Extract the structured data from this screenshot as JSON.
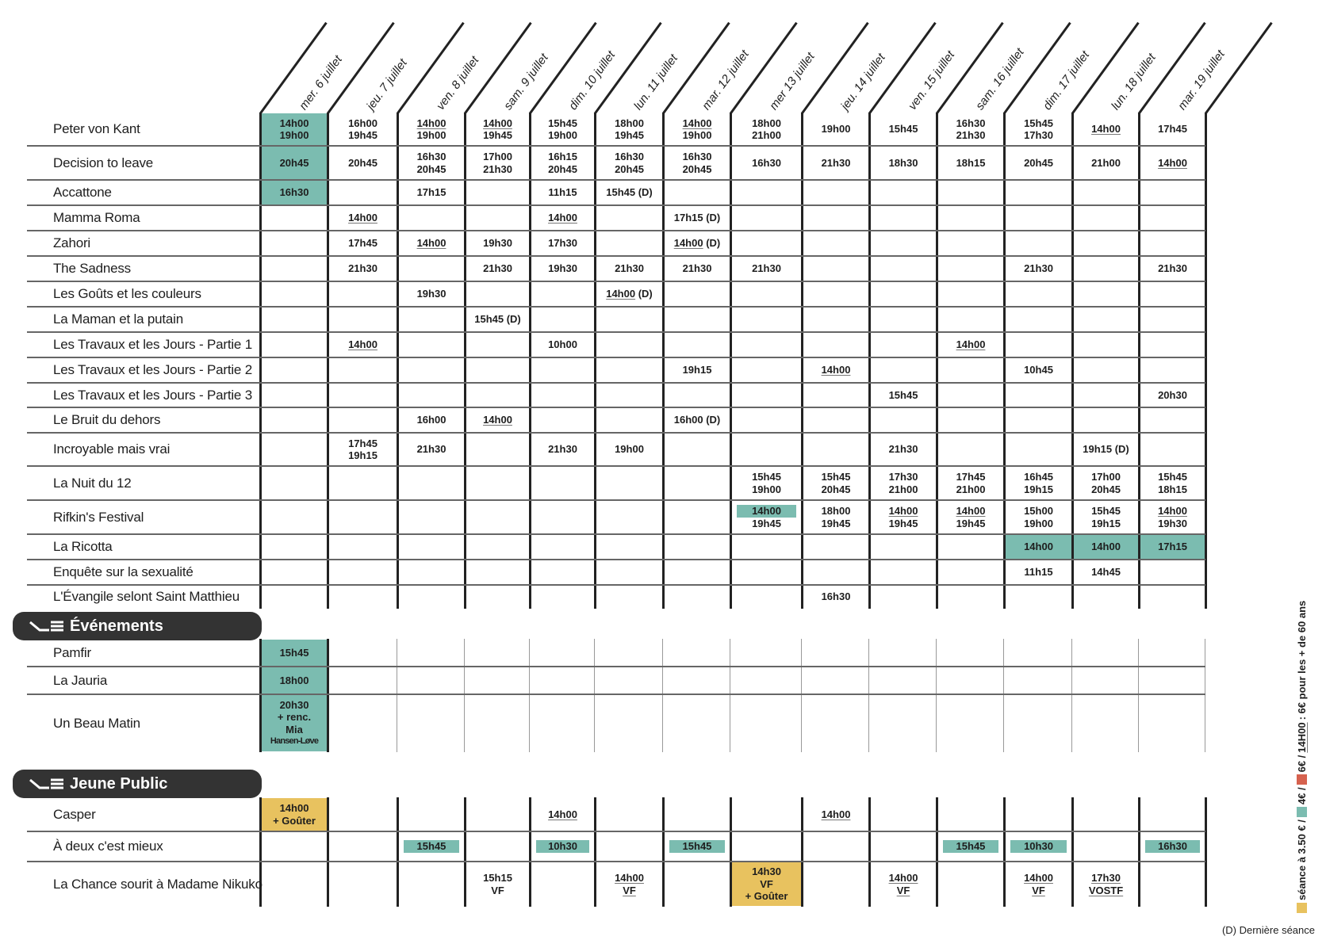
{
  "colors": {
    "teal": "#7bbcb0",
    "gold": "#e8c25f",
    "red": "#d6624f",
    "dark": "#333333"
  },
  "days": [
    "mer. 6 juillet",
    "jeu. 7 juillet",
    "ven. 8 juillet",
    "sam. 9 juillet",
    "dim. 10 juillet",
    "lun. 11 juillet",
    "mar. 12 juillet",
    "mer 13 juillet",
    "jeu. 14 juillet",
    "ven. 15 juillet",
    "sam. 16 juillet",
    "dim. 17 juillet",
    "lun. 18 juillet",
    "mar. 19 juillet"
  ],
  "films": [
    {
      "title": "Peter von Kant",
      "cells": {
        "0": {
          "l": [
            "14h00",
            "19h00"
          ],
          "hl": "fill"
        },
        "1": {
          "l": [
            "16h00",
            "19h45"
          ]
        },
        "2": {
          "l": [
            "14h00",
            "19h00"
          ],
          "u": [
            1,
            0
          ]
        },
        "3": {
          "l": [
            "14h00",
            "19h45"
          ],
          "u": [
            1,
            0
          ]
        },
        "4": {
          "l": [
            "15h45",
            "19h00"
          ]
        },
        "5": {
          "l": [
            "18h00",
            "19h45"
          ]
        },
        "6": {
          "l": [
            "14h00",
            "19h00"
          ],
          "u": [
            1,
            0
          ]
        },
        "7": {
          "l": [
            "18h00",
            "21h00"
          ]
        },
        "8": {
          "l": [
            "19h00"
          ]
        },
        "9": {
          "l": [
            "15h45"
          ]
        },
        "10": {
          "l": [
            "16h30",
            "21h30"
          ]
        },
        "11": {
          "l": [
            "15h45",
            "17h30"
          ]
        },
        "12": {
          "l": [
            "14h00"
          ],
          "u": [
            1
          ]
        },
        "13": {
          "l": [
            "17h45"
          ]
        }
      }
    },
    {
      "title": "Decision to leave",
      "cells": {
        "0": {
          "l": [
            "20h45"
          ],
          "hl": "fill"
        },
        "1": {
          "l": [
            "20h45"
          ]
        },
        "2": {
          "l": [
            "16h30",
            "20h45"
          ]
        },
        "3": {
          "l": [
            "17h00",
            "21h30"
          ]
        },
        "4": {
          "l": [
            "16h15",
            "20h45"
          ]
        },
        "5": {
          "l": [
            "16h30",
            "20h45"
          ]
        },
        "6": {
          "l": [
            "16h30",
            "20h45"
          ]
        },
        "7": {
          "l": [
            "16h30"
          ]
        },
        "8": {
          "l": [
            "21h30"
          ]
        },
        "9": {
          "l": [
            "18h30"
          ]
        },
        "10": {
          "l": [
            "18h15"
          ]
        },
        "11": {
          "l": [
            "20h45"
          ]
        },
        "12": {
          "l": [
            "21h00"
          ]
        },
        "13": {
          "l": [
            "14h00"
          ],
          "u": [
            1
          ]
        }
      }
    },
    {
      "title": "Accattone",
      "cells": {
        "0": {
          "l": [
            "16h30"
          ],
          "hl": "fill"
        },
        "2": {
          "l": [
            "17h15"
          ]
        },
        "4": {
          "l": [
            "11h15"
          ]
        },
        "5": {
          "l": [
            "15h45 (D)"
          ]
        }
      }
    },
    {
      "title": "Mamma Roma",
      "cells": {
        "1": {
          "l": [
            "14h00"
          ],
          "u": [
            1
          ]
        },
        "4": {
          "l": [
            "14h00"
          ],
          "u": [
            1
          ]
        },
        "6": {
          "l": [
            "17h15 (D)"
          ]
        }
      }
    },
    {
      "title": "Zahori",
      "cells": {
        "1": {
          "l": [
            "17h45"
          ]
        },
        "2": {
          "l": [
            "14h00"
          ],
          "u": [
            1
          ]
        },
        "3": {
          "l": [
            "19h30"
          ]
        },
        "4": {
          "l": [
            "17h30"
          ]
        },
        "6": {
          "l": [
            "14h00 (D)"
          ],
          "u": [
            1
          ]
        }
      }
    },
    {
      "title": "The Sadness",
      "cells": {
        "1": {
          "l": [
            "21h30"
          ]
        },
        "3": {
          "l": [
            "21h30"
          ]
        },
        "4": {
          "l": [
            "19h30"
          ]
        },
        "5": {
          "l": [
            "21h30"
          ]
        },
        "6": {
          "l": [
            "21h30"
          ]
        },
        "7": {
          "l": [
            "21h30"
          ]
        },
        "11": {
          "l": [
            "21h30"
          ]
        },
        "13": {
          "l": [
            "21h30"
          ]
        }
      }
    },
    {
      "title": "Les Goûts et les couleurs",
      "cells": {
        "2": {
          "l": [
            "19h30"
          ]
        },
        "5": {
          "l": [
            "14h00 (D)"
          ],
          "u": [
            1
          ]
        }
      }
    },
    {
      "title": "La Maman et la putain",
      "cells": {
        "3": {
          "l": [
            "15h45 (D)"
          ]
        }
      }
    },
    {
      "title": "Les Travaux et les Jours - Partie 1",
      "cells": {
        "1": {
          "l": [
            "14h00"
          ],
          "u": [
            1
          ]
        },
        "4": {
          "l": [
            "10h00"
          ]
        },
        "10": {
          "l": [
            "14h00"
          ],
          "u": [
            1
          ]
        }
      }
    },
    {
      "title": "Les Travaux et les Jours - Partie 2",
      "cells": {
        "6": {
          "l": [
            "19h15"
          ]
        },
        "8": {
          "l": [
            "14h00"
          ],
          "u": [
            1
          ]
        },
        "11": {
          "l": [
            "10h45"
          ]
        }
      }
    },
    {
      "title": "Les Travaux et les Jours - Partie 3",
      "cells": {
        "9": {
          "l": [
            "15h45"
          ]
        },
        "13": {
          "l": [
            "20h30"
          ]
        }
      }
    },
    {
      "title": "Le Bruit du dehors",
      "cells": {
        "2": {
          "l": [
            "16h00"
          ]
        },
        "3": {
          "l": [
            "14h00"
          ],
          "u": [
            1
          ]
        },
        "6": {
          "l": [
            "16h00 (D)"
          ]
        }
      }
    },
    {
      "title": "Incroyable mais vrai",
      "cells": {
        "1": {
          "l": [
            "17h45",
            "19h15"
          ]
        },
        "2": {
          "l": [
            "21h30"
          ]
        },
        "4": {
          "l": [
            "21h30"
          ]
        },
        "5": {
          "l": [
            "19h00"
          ]
        },
        "9": {
          "l": [
            "21h30"
          ]
        },
        "12": {
          "l": [
            "19h15 (D)"
          ]
        }
      }
    },
    {
      "title": "La Nuit du 12",
      "cells": {
        "7": {
          "l": [
            "15h45",
            "19h00"
          ]
        },
        "8": {
          "l": [
            "15h45",
            "20h45"
          ]
        },
        "9": {
          "l": [
            "17h30",
            "21h00"
          ]
        },
        "10": {
          "l": [
            "17h45",
            "21h00"
          ]
        },
        "11": {
          "l": [
            "16h45",
            "19h15"
          ]
        },
        "12": {
          "l": [
            "17h00",
            "20h45"
          ]
        },
        "13": {
          "l": [
            "15h45",
            "18h15"
          ]
        }
      }
    },
    {
      "title": "Rifkin's Festival",
      "cells": {
        "7": {
          "l": [
            "14h00",
            "19h45"
          ],
          "bar": [
            1,
            0
          ]
        },
        "8": {
          "l": [
            "18h00",
            "19h45"
          ]
        },
        "9": {
          "l": [
            "14h00",
            "19h45"
          ],
          "u": [
            1,
            0
          ]
        },
        "10": {
          "l": [
            "14h00",
            "19h45"
          ],
          "u": [
            1,
            0
          ]
        },
        "11": {
          "l": [
            "15h00",
            "19h00"
          ]
        },
        "12": {
          "l": [
            "15h45",
            "19h15"
          ]
        },
        "13": {
          "l": [
            "14h00",
            "19h30"
          ],
          "u": [
            1,
            0
          ]
        }
      }
    },
    {
      "title": "La Ricotta",
      "cells": {
        "11": {
          "l": [
            "14h00"
          ],
          "hl": "fill"
        },
        "12": {
          "l": [
            "14h00"
          ],
          "hl": "fill"
        },
        "13": {
          "l": [
            "17h15"
          ],
          "hl": "fill"
        }
      }
    },
    {
      "title": "Enquête sur la sexualité",
      "cells": {
        "11": {
          "l": [
            "11h15"
          ]
        },
        "12": {
          "l": [
            "14h45"
          ]
        }
      }
    },
    {
      "title": "L'Évangile selont Saint Matthieu",
      "cells": {
        "8": {
          "l": [
            "16h30"
          ]
        }
      }
    }
  ],
  "events": {
    "title": "Événements",
    "films": [
      {
        "title": "Pamfir",
        "cells": {
          "0": {
            "l": [
              "15h45"
            ],
            "hl": "fill"
          }
        }
      },
      {
        "title": "La Jauria",
        "cells": {
          "0": {
            "l": [
              "18h00"
            ],
            "hl": "fill"
          }
        }
      },
      {
        "title": "Un Beau Matin",
        "cells": {
          "0": {
            "l": [
              "20h30",
              "+ renc.",
              "Mia",
              "Hansen-Løve"
            ],
            "hl": "fill"
          }
        }
      }
    ]
  },
  "young": {
    "title": "Jeune Public",
    "films": [
      {
        "title": "Casper",
        "cells": {
          "0": {
            "l": [
              "14h00",
              "+ Goûter"
            ],
            "hl": "gold"
          },
          "4": {
            "l": [
              "14h00"
            ],
            "u": [
              1
            ]
          },
          "8": {
            "l": [
              "14h00"
            ],
            "u": [
              1
            ]
          }
        }
      },
      {
        "title": "À deux c'est mieux",
        "cells": {
          "2": {
            "l": [
              "15h45"
            ],
            "bar": [
              1
            ]
          },
          "4": {
            "l": [
              "10h30"
            ],
            "bar": [
              1
            ]
          },
          "6": {
            "l": [
              "15h45"
            ],
            "bar": [
              1
            ]
          },
          "10": {
            "l": [
              "15h45"
            ],
            "bar": [
              1
            ]
          },
          "11": {
            "l": [
              "10h30"
            ],
            "bar": [
              1
            ]
          },
          "13": {
            "l": [
              "16h30"
            ],
            "bar": [
              1
            ]
          }
        }
      },
      {
        "title": "La Chance sourit à Madame Nikuko",
        "cells": {
          "3": {
            "l": [
              "15h15",
              "VF"
            ]
          },
          "5": {
            "l": [
              "14h00",
              "VF"
            ],
            "u": [
              1,
              1
            ]
          },
          "7": {
            "l": [
              "14h30",
              "VF",
              "+ Goûter"
            ],
            "hl": "gold"
          },
          "9": {
            "l": [
              "14h00",
              "VF"
            ],
            "u": [
              1,
              1
            ]
          },
          "11": {
            "l": [
              "14h00",
              "VF"
            ],
            "u": [
              1,
              1
            ]
          },
          "12": {
            "l": [
              "17h30",
              "VOSTF"
            ],
            "u": [
              1,
              1
            ]
          }
        }
      }
    ]
  },
  "legend": {
    "yellow_label": "séance à 3.50 € /",
    "teal_label": "4€ /",
    "red_label": "6€ /",
    "underline_label": "14H00",
    "underline_suffix": ": 6€ pour les + de 60 ans",
    "footnote": "(D) Dernière séance"
  }
}
